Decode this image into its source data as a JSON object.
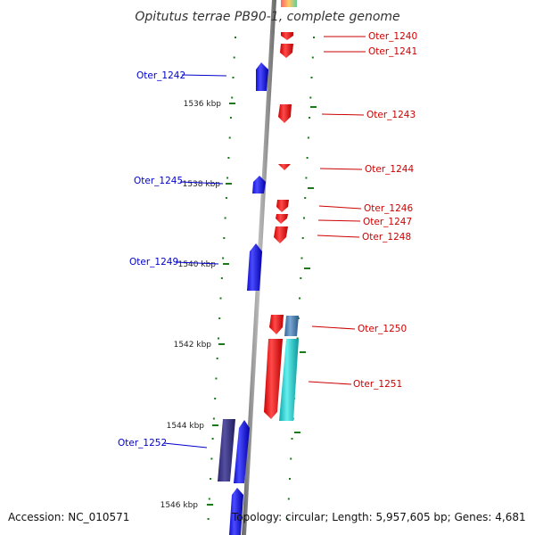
{
  "title": "Opitutus terrae PB90-1, complete genome",
  "footer": {
    "accession": "Accession: NC_010571",
    "topology": "Topology: circular; Length: 5,957,605 bp; Genes: 4,681"
  },
  "kbp_labels": [
    "1536 kbp",
    "1538 kbp",
    "1540 kbp",
    "1542 kbp",
    "1544 kbp",
    "1546 kbp"
  ],
  "genes_left": [
    "Oter_1242",
    "Oter_1245",
    "Oter_1249",
    "Oter_1252"
  ],
  "genes_right": [
    "Oter_1240",
    "Oter_1241",
    "Oter_1243",
    "Oter_1244",
    "Oter_1246",
    "Oter_1247",
    "Oter_1248",
    "Oter_1250",
    "Oter_1251"
  ],
  "colors": {
    "forward_strand": "#0000ee",
    "reverse_strand": "#ee0000",
    "backbone": "#888888",
    "tick": "#1a7a1a",
    "rna_cyan": "#22cccc",
    "purple_feature": "#3a3380",
    "steel_feature": "#4477aa"
  }
}
